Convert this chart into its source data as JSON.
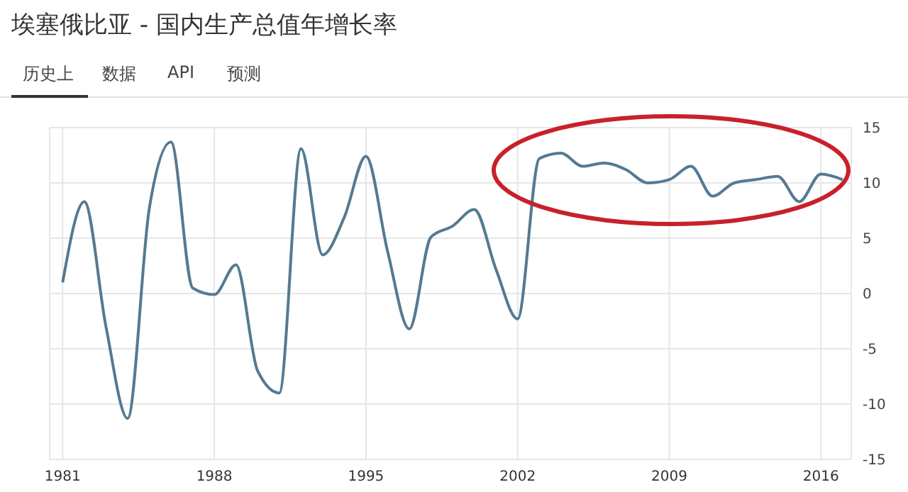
{
  "chart_data": {
    "type": "line",
    "title": "埃塞俄比亚 - 国内生产总值年增长率",
    "annotations": [
      "历史上",
      "数据",
      "API",
      "预测"
    ],
    "x": [
      1981,
      1982,
      1983,
      1984,
      1985,
      1986,
      1987,
      1988,
      1989,
      1990,
      1991,
      1992,
      1993,
      1994,
      1995,
      1996,
      1997,
      1998,
      1999,
      2000,
      2001,
      2002,
      2003,
      2004,
      2005,
      2006,
      2007,
      2008,
      2009,
      2010,
      2011,
      2012,
      2013,
      2014,
      2015,
      2016,
      2017
    ],
    "series": [
      {
        "color": "#557a91",
        "values": [
          1.0,
          8.3,
          -3.0,
          -11.3,
          7.7,
          13.7,
          0.5,
          -0.1,
          2.6,
          -7.0,
          -9.0,
          13.1,
          3.5,
          6.9,
          12.4,
          3.8,
          -3.2,
          5.1,
          6.1,
          7.6,
          2.2,
          -2.3,
          12.2,
          12.7,
          11.5,
          11.8,
          11.2,
          10.0,
          10.3,
          11.5,
          8.8,
          10.0,
          10.3,
          10.6,
          8.3,
          10.8,
          10.3
        ]
      }
    ],
    "xlim": [
      1980.4,
      2017.4
    ],
    "xticks": [
      1981,
      1988,
      1995,
      2002,
      2009,
      2016
    ],
    "ylim": [
      -15,
      15
    ],
    "yticks": [
      -15,
      -10,
      -5,
      0,
      5,
      10,
      15
    ],
    "grid": true,
    "legend": false,
    "marker": "none",
    "line_style": "solid"
  }
}
